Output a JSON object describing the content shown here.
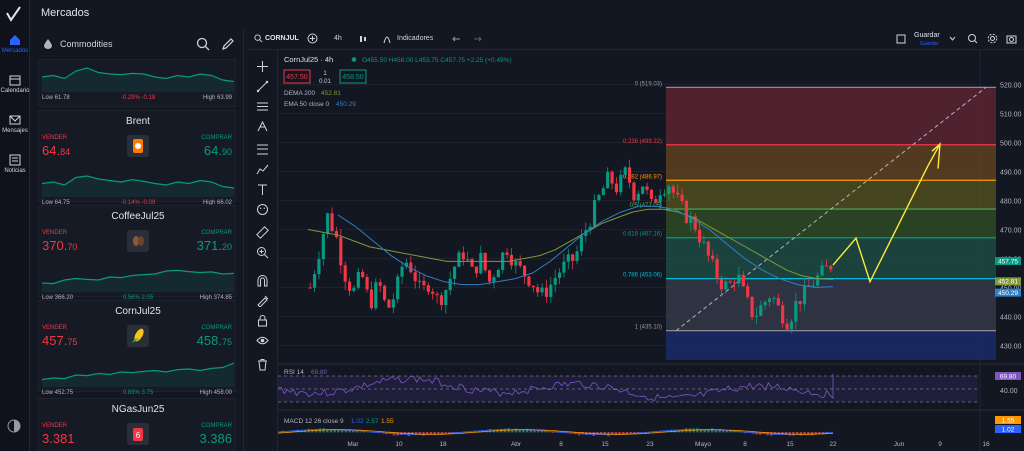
{
  "header": {
    "title": "Mercados"
  },
  "nav": [
    {
      "label": "Mercados",
      "icon": "house-icon",
      "active": true
    },
    {
      "label": "Calendario",
      "icon": "calendar-icon",
      "active": false
    },
    {
      "label": "Mensajes",
      "icon": "envelope-icon",
      "active": false
    },
    {
      "label": "Noticias",
      "icon": "news-icon",
      "active": false
    }
  ],
  "watchlist": {
    "category": "Commodities",
    "cards": [
      {
        "name": "",
        "sell_label": "",
        "buy_label": "",
        "sell_main": "",
        "sell_small": "",
        "buy_main": "",
        "buy_small": "",
        "icon": "",
        "low": "Low 61.78",
        "change": "-0.29%  -0.18",
        "high": "High 63.99",
        "trend": "neg",
        "spark": [
          0.5,
          0.45,
          0.55,
          0.3,
          0.2,
          0.35,
          0.4,
          0.42,
          0.38,
          0.4,
          0.5,
          0.55,
          0.45,
          0.5,
          0.4,
          0.45,
          0.6,
          0.65
        ]
      },
      {
        "name": "Brent",
        "sell_label": "VENDER",
        "buy_label": "COMPRAR",
        "sell_main": "64.",
        "sell_small": "84",
        "buy_main": "64.",
        "buy_small": "90",
        "icon": "oil-barrel-icon",
        "low": "Low 64.75",
        "change": "-0.14%  -0.09",
        "high": "High 66.02",
        "trend": "neg",
        "spark": [
          0.55,
          0.5,
          0.6,
          0.35,
          0.3,
          0.4,
          0.45,
          0.5,
          0.42,
          0.48,
          0.55,
          0.6,
          0.5,
          0.55,
          0.45,
          0.5,
          0.65,
          0.7
        ]
      },
      {
        "name": "CoffeeJul25",
        "sell_label": "VENDER",
        "buy_label": "COMPRAR",
        "sell_main": "370.",
        "sell_small": "70",
        "buy_main": "371.",
        "buy_small": "20",
        "icon": "coffee-bean-icon",
        "low": "Low 366.20",
        "change": "0.56%  2.05",
        "high": "High 374.85",
        "trend": "pos",
        "spark": [
          0.7,
          0.72,
          0.6,
          0.55,
          0.58,
          0.6,
          0.5,
          0.52,
          0.45,
          0.42,
          0.4,
          0.3,
          0.28,
          0.32,
          0.35,
          0.33,
          0.4,
          0.38
        ]
      },
      {
        "name": "CornJul25",
        "sell_label": "VENDER",
        "buy_label": "COMPRAR",
        "sell_main": "457.",
        "sell_small": "75",
        "buy_main": "458.",
        "buy_small": "75",
        "icon": "corn-icon",
        "low": "Low 452.75",
        "change": "0.83%  3.75",
        "high": "High 458.00",
        "trend": "pos",
        "spark": [
          0.75,
          0.7,
          0.72,
          0.6,
          0.62,
          0.55,
          0.58,
          0.5,
          0.52,
          0.48,
          0.45,
          0.5,
          0.42,
          0.4,
          0.45,
          0.38,
          0.35,
          0.2
        ]
      },
      {
        "name": "NGasJun25",
        "sell_label": "VENDER",
        "buy_label": "COMPRAR",
        "sell_main": "3.381",
        "sell_small": "",
        "buy_main": "3.386",
        "buy_small": "",
        "icon": "gas-can-icon",
        "low": "",
        "change": "",
        "high": "",
        "trend": "neg",
        "spark": []
      }
    ]
  },
  "toolbar": {
    "symbol": "CORNJUL",
    "interval": "4h",
    "indicators": "Indicadores",
    "save": "Guardar",
    "save_sub": "Guardar"
  },
  "legend": {
    "symbol": "CornJul25 · 4h",
    "ohlc": "O455.50  H458.00  L453.75  C457.75  +2.25 (+0.49%)",
    "sell": "457.50",
    "spread_top": "1",
    "spread_bot": "0.01",
    "buy": "458.50",
    "dema": "DEMA 200",
    "dema_val": "452.81",
    "ema": "EMA 50 close 0",
    "ema_val": "450.29"
  },
  "rsi": {
    "label": "RSI 14",
    "value": "69.80",
    "axis": "40.00",
    "axis_tag": "69.80"
  },
  "macd": {
    "label": "MACD 12 26 close 9",
    "v1": "1.02",
    "v2": "2.57",
    "v3": "1.55",
    "tag1": "1.55",
    "tag2": "1.02"
  },
  "colors": {
    "bull": "#089981",
    "bear": "#f23645",
    "dema": "#7e9a3a",
    "ema": "#2f7fc9",
    "projection": "#ffeb3b"
  },
  "chart_data": {
    "type": "candlestick",
    "price_axis": {
      "min": 425,
      "max": 525,
      "ticks": [
        520,
        510,
        500,
        490,
        480,
        470,
        460,
        450,
        440,
        430
      ]
    },
    "price_tags": [
      {
        "label": "457.75",
        "color": "#089981"
      },
      {
        "label": "452.81",
        "color": "#7e9a3a"
      },
      {
        "label": "450.29",
        "color": "#2f7fc9"
      }
    ],
    "time_axis": [
      "Mar",
      "10",
      "18",
      "Abr",
      "8",
      "15",
      "23",
      "Mayo",
      "8",
      "15",
      "22",
      "Jun",
      "9",
      "16"
    ],
    "fibonacci": [
      {
        "label": "0 (519.03)",
        "price": 519.03,
        "color": "#9598a1"
      },
      {
        "label": "0.236 (499.22)",
        "price": 499.22,
        "color": "#f23645"
      },
      {
        "label": "0.382 (486.97)",
        "price": 486.97,
        "color": "#ff9800"
      },
      {
        "label": "0.5 (477.05)",
        "price": 477.05,
        "color": "#4caf50"
      },
      {
        "label": "0.618 (467.16)",
        "price": 467.16,
        "color": "#089981"
      },
      {
        "label": "0.786 (453.06)",
        "price": 453.06,
        "color": "#00bcd4"
      },
      {
        "label": "1 (435.10)",
        "price": 435.1,
        "color": "#9598a1"
      }
    ],
    "close_path": [
      450,
      462,
      475,
      468,
      455,
      448,
      455,
      444,
      452,
      442,
      448,
      460,
      456,
      448,
      452,
      445,
      450,
      458,
      462,
      455,
      460,
      452,
      458,
      464,
      458,
      455,
      452,
      447,
      450,
      455,
      458,
      460,
      468,
      475,
      482,
      488,
      484,
      490,
      482,
      486,
      478,
      484,
      486,
      480,
      475,
      472,
      465,
      458,
      452,
      450,
      455,
      446,
      440,
      444,
      448,
      442,
      438,
      445,
      448,
      452,
      455,
      457.75
    ],
    "dema_path": [
      470,
      469,
      468,
      466,
      464,
      463,
      462,
      461,
      460,
      459,
      459,
      459,
      459,
      459,
      460,
      461,
      463,
      466,
      469,
      472,
      474,
      476,
      477,
      477,
      476,
      474,
      471,
      468,
      465,
      462,
      459,
      456,
      454,
      453,
      452.81
    ],
    "ema_path": [
      475,
      471,
      466,
      461,
      457,
      454,
      452,
      451,
      451,
      452,
      453,
      455,
      459,
      464,
      469,
      473,
      476,
      478,
      478,
      477,
      474,
      470,
      465,
      460,
      456,
      453,
      451,
      450,
      450.29
    ],
    "projection": [
      457.75,
      467,
      452,
      490,
      505
    ],
    "diagonal": [
      435.1,
      519.03
    ]
  }
}
